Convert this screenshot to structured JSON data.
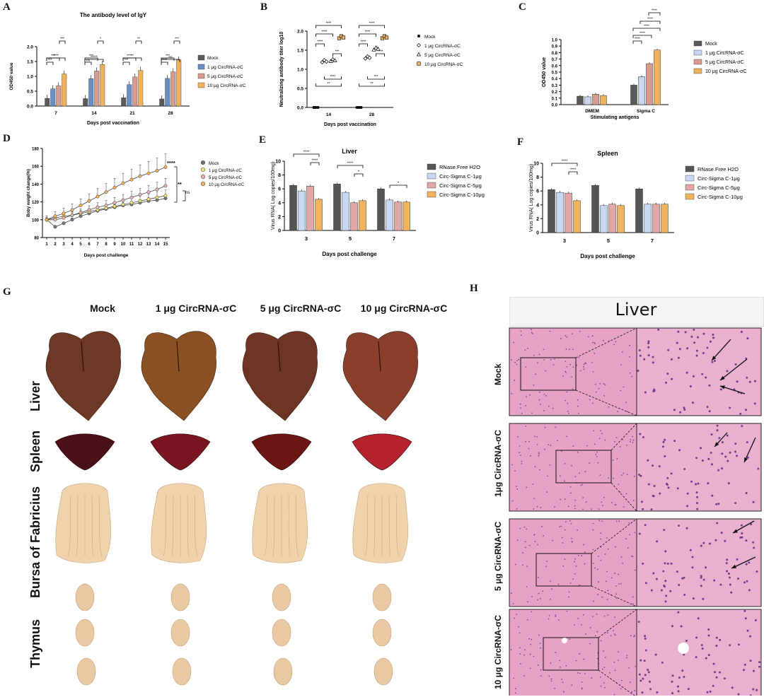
{
  "panels": {
    "A": "A",
    "B": "B",
    "C": "C",
    "D": "D",
    "E": "E",
    "F": "F",
    "G": "G",
    "H": "H"
  },
  "colors": {
    "mock": "#5a5a5a",
    "g1": "#6a8fc7",
    "g5": "#d69b8e",
    "g10": "#f0b25c",
    "ctrl": "#555555",
    "cs1": "#c8d8f2",
    "cs5": "#e2a8a8",
    "cs10": "#f2b35e",
    "liver": "#7a3e2e",
    "spleen": "#6e1c22",
    "bursa": "#eed3ad",
    "thymus": "#e9c9a3",
    "tissue": "#e6a3c6"
  },
  "chart_data": [
    {
      "id": "A",
      "type": "bar",
      "title": "The antibody level of IgY",
      "xlabel": "Days post vaccination",
      "ylabel": "OD450 value",
      "categories": [
        "7",
        "14",
        "21",
        "28"
      ],
      "ylim": [
        0,
        2.0
      ],
      "yticks": [
        "0.0",
        "0.5",
        "1.0",
        "1.5",
        "2.0"
      ],
      "series": [
        {
          "name": "Mock",
          "values": [
            0.26,
            0.25,
            0.28,
            0.24
          ]
        },
        {
          "name": "1 μg CircRNA-σC",
          "values": [
            0.58,
            0.92,
            0.72,
            0.93
          ]
        },
        {
          "name": "5 μg CircRNA-σC",
          "values": [
            0.68,
            1.18,
            0.98,
            1.15
          ]
        },
        {
          "name": "10 μg CircRNA-σC",
          "values": [
            1.08,
            1.4,
            1.2,
            1.55
          ]
        }
      ],
      "sig": [
        "****",
        "***",
        "***",
        "***",
        "*****",
        "***",
        "ns",
        "*",
        "**",
        "****",
        "***",
        "**",
        "ns",
        "***",
        "****",
        "***",
        "****",
        "***"
      ]
    },
    {
      "id": "B",
      "type": "scatter",
      "title": "",
      "xlabel": "Days post vaccination",
      "ylabel": "Neutralizing antibody titer log10",
      "categories": [
        "14",
        "28"
      ],
      "ylim": [
        0,
        2.0
      ],
      "yticks": [
        "0.0",
        "0.5",
        "1.0",
        "1.5",
        "2.0"
      ],
      "series": [
        {
          "name": "Mock",
          "values": [
            0,
            0
          ]
        },
        {
          "name": "1 μg CircRNA-σC",
          "values": [
            1.22,
            1.32
          ]
        },
        {
          "name": "5 μg CircRNA-σC",
          "values": [
            1.25,
            1.55
          ]
        },
        {
          "name": "10 μg CircRNA-σC",
          "values": [
            1.85,
            1.85
          ]
        }
      ],
      "sig": [
        "****",
        "****",
        "****",
        "***",
        "****",
        "**",
        "****",
        "****",
        "****",
        "****",
        "***",
        "**"
      ]
    },
    {
      "id": "C",
      "type": "bar",
      "title": "",
      "xlabel": "Stimulating antigens",
      "ylabel": "OD450 value",
      "categories": [
        "DMEM",
        "Sigma C"
      ],
      "ylim": [
        0,
        1.0
      ],
      "yticks": [
        "0.0",
        "0.1",
        "0.2",
        "0.3",
        "0.4",
        "0.5",
        "0.6",
        "0.7",
        "0.8",
        "0.9",
        "1.0"
      ],
      "series": [
        {
          "name": "Mock",
          "values": [
            0.13,
            0.3
          ]
        },
        {
          "name": "1 μg CircRNA-σC",
          "values": [
            0.12,
            0.43
          ]
        },
        {
          "name": "5 μg CircRNA-σC",
          "values": [
            0.16,
            0.63
          ]
        },
        {
          "name": "10 μg CircRNA-σC",
          "values": [
            0.14,
            0.84
          ]
        }
      ],
      "sig": [
        "****",
        "****",
        "****",
        "****",
        "****",
        "****"
      ]
    },
    {
      "id": "D",
      "type": "line",
      "title": "",
      "xlabel": "Days post challenge",
      "ylabel": "Boby weight change(%)",
      "x": [
        "1",
        "2",
        "3",
        "4",
        "5",
        "6",
        "7",
        "8",
        "9",
        "10",
        "11",
        "12",
        "13",
        "14",
        "15"
      ],
      "ylim": [
        80,
        180
      ],
      "yticks": [
        "80",
        "100",
        "120",
        "140",
        "160",
        "180"
      ],
      "series": [
        {
          "name": "Mock",
          "values": [
            100,
            92,
            96,
            100,
            104,
            107,
            110,
            112,
            114,
            116,
            117,
            119,
            121,
            122,
            124
          ]
        },
        {
          "name": "1 μg CircRNA-σC",
          "values": [
            100,
            102,
            104,
            105,
            107,
            109,
            111,
            113,
            115,
            117,
            119,
            121,
            123,
            125,
            127
          ]
        },
        {
          "name": "5 μg CircRNA-σC",
          "values": [
            100,
            100,
            102,
            105,
            108,
            111,
            114,
            116,
            119,
            122,
            125,
            128,
            131,
            134,
            138
          ]
        },
        {
          "name": "10 μg CircRNA-σC",
          "values": [
            100,
            104,
            107,
            111,
            116,
            121,
            126,
            131,
            136,
            141,
            145,
            149,
            152,
            155,
            159
          ]
        }
      ],
      "sig": [
        "****",
        "**",
        "ns"
      ]
    },
    {
      "id": "E",
      "type": "bar",
      "title": "Liver",
      "xlabel": "Days post challenge",
      "ylabel": "Virus RNA( Log copies/100mg)",
      "categories": [
        "3",
        "5",
        "7"
      ],
      "ylim": [
        0,
        10
      ],
      "yticks": [
        "0",
        "2",
        "4",
        "6",
        "8",
        "10"
      ],
      "series": [
        {
          "name": "RNase.Free H2O",
          "values": [
            6.5,
            6.7,
            6.0
          ]
        },
        {
          "name": "Circ-Sigma C-1μg",
          "values": [
            5.7,
            5.5,
            4.4
          ]
        },
        {
          "name": "Circ-Sigma C-5μg",
          "values": [
            6.4,
            4.0,
            4.1
          ]
        },
        {
          "name": "Circ-Sigma C-10μg",
          "values": [
            4.5,
            4.3,
            4.1
          ]
        }
      ],
      "sig": [
        "****",
        "****",
        "****",
        "*",
        "*"
      ]
    },
    {
      "id": "F",
      "type": "bar",
      "title": "Spleen",
      "xlabel": "Days post challenge",
      "ylabel": "Virus RNA( Log copies/100mg)",
      "categories": [
        "3",
        "5",
        "7"
      ],
      "ylim": [
        0,
        10
      ],
      "yticks": [
        "0",
        "2",
        "4",
        "6",
        "8",
        "10"
      ],
      "series": [
        {
          "name": "RNase.Free H2O",
          "values": [
            6.2,
            6.8,
            6.3
          ]
        },
        {
          "name": "Circ-Sigma C-1μg",
          "values": [
            5.8,
            3.9,
            4.1
          ]
        },
        {
          "name": "Circ-Sigma C-5μg",
          "values": [
            5.7,
            4.1,
            4.1
          ]
        },
        {
          "name": "Circ-Sigma C-10μg",
          "values": [
            4.6,
            3.9,
            4.1
          ]
        }
      ],
      "sig": [
        "****",
        "****"
      ]
    }
  ],
  "G": {
    "columns": [
      "Mock",
      "1 μg CircRNA-σC",
      "5 μg CircRNA-σC",
      "10 μg CircRNA-σC"
    ],
    "rows": [
      "Liver",
      "Spleen",
      "Bursa of Fabricius",
      "Thymus"
    ]
  },
  "H": {
    "title": "Liver",
    "rows": [
      "Mock",
      "1μg CircRNA-σC",
      "5 μg CircRNA-σC",
      "10 μg CircRNA-σC"
    ]
  }
}
